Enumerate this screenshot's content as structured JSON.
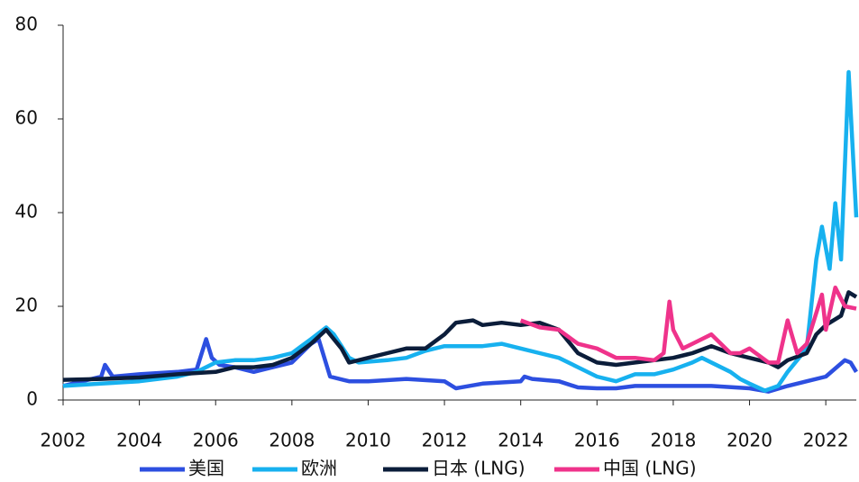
{
  "chart_data": {
    "type": "line",
    "xlim": [
      2002,
      2022.8
    ],
    "xticks": [
      2002,
      2004,
      2006,
      2008,
      2010,
      2012,
      2014,
      2016,
      2018,
      2020,
      2022
    ],
    "ylim": [
      0,
      80
    ],
    "yticks": [
      0,
      20,
      40,
      60,
      80
    ],
    "grid": false,
    "legend": "bottom",
    "series": [
      {
        "name": "美国",
        "color": "#2d4fe0",
        "x": [
          2002,
          2002.5,
          2003,
          2003.1,
          2003.3,
          2004,
          2005,
          2005.5,
          2005.75,
          2005.9,
          2006.1,
          2006.5,
          2007,
          2007.5,
          2008,
          2008.5,
          2008.7,
          2009,
          2009.5,
          2010,
          2011,
          2012,
          2012.3,
          2013,
          2014,
          2014.1,
          2014.3,
          2015,
          2015.5,
          2016,
          2016.5,
          2017,
          2018,
          2019,
          2020,
          2020.5,
          2021,
          2021.5,
          2022,
          2022.5,
          2022.65,
          2022.8
        ],
        "values": [
          3,
          4,
          5,
          7.5,
          5,
          5.5,
          6,
          6.5,
          13,
          9,
          7.5,
          7,
          6,
          7,
          8,
          12,
          13,
          5,
          4,
          4,
          4.5,
          4,
          2.5,
          3.5,
          4,
          5,
          4.5,
          4,
          2.7,
          2.5,
          2.5,
          3,
          3,
          3,
          2.5,
          1.8,
          3,
          4,
          5,
          8.5,
          8,
          6
        ]
      },
      {
        "name": "欧洲",
        "color": "#17b1ef",
        "x": [
          2002,
          2003,
          2004,
          2005,
          2005.5,
          2006,
          2006.5,
          2007,
          2007.5,
          2008,
          2008.5,
          2008.9,
          2009.1,
          2009.5,
          2009.75,
          2010.5,
          2011,
          2011.5,
          2012,
          2013,
          2013.5,
          2014,
          2014.5,
          2015,
          2015.5,
          2016,
          2016.5,
          2017,
          2017.5,
          2018,
          2018.5,
          2018.75,
          2019.5,
          2019.75,
          2020,
          2020.4,
          2020.75,
          2021,
          2021.5,
          2021.75,
          2021.9,
          2022.1,
          2022.25,
          2022.4,
          2022.6,
          2022.8
        ],
        "values": [
          3,
          3.5,
          4,
          5,
          6,
          8,
          8.5,
          8.5,
          9,
          10,
          13,
          15.5,
          14,
          9,
          8,
          8.5,
          9,
          10.5,
          11.5,
          11.5,
          12,
          11,
          10,
          9,
          7,
          5,
          4,
          5.5,
          5.5,
          6.5,
          8,
          9,
          6,
          4.5,
          3.5,
          2,
          3,
          6,
          11,
          30,
          37,
          28,
          42,
          30,
          70,
          39
        ]
      },
      {
        "name": "日本 (LNG)",
        "color": "#0b1d3a",
        "x": [
          2002,
          2003,
          2004,
          2005,
          2006,
          2006.5,
          2007,
          2007.5,
          2008,
          2008.5,
          2008.9,
          2009.3,
          2009.5,
          2010,
          2010.5,
          2011,
          2011.5,
          2012,
          2012.3,
          2012.75,
          2013,
          2013.5,
          2014,
          2014.5,
          2015,
          2015.5,
          2016,
          2016.5,
          2017,
          2017.5,
          2018,
          2018.5,
          2019,
          2019.5,
          2020,
          2020.5,
          2020.75,
          2021,
          2021.5,
          2021.75,
          2022,
          2022.4,
          2022.6,
          2022.8
        ],
        "values": [
          4.3,
          4.5,
          4.8,
          5.5,
          6,
          7,
          7,
          7.5,
          9,
          12,
          15,
          11,
          8,
          9,
          10,
          11,
          11,
          14,
          16.5,
          17,
          16,
          16.5,
          16,
          16.5,
          15,
          10,
          8,
          7.5,
          8,
          8.5,
          9,
          10,
          11.5,
          10,
          9,
          8,
          7,
          8.5,
          10,
          14,
          16,
          18,
          23,
          22
        ]
      },
      {
        "name": "中国 (LNG)",
        "color": "#ef338b",
        "x": [
          2014,
          2014.5,
          2015,
          2015.5,
          2016,
          2016.5,
          2017,
          2017.5,
          2017.75,
          2017.9,
          2018,
          2018.25,
          2018.5,
          2018.75,
          2019,
          2019.5,
          2019.75,
          2020,
          2020.5,
          2020.75,
          2021,
          2021.25,
          2021.5,
          2021.9,
          2022,
          2022.25,
          2022.5,
          2022.8
        ],
        "values": [
          17,
          15.5,
          15,
          12,
          11,
          9,
          9,
          8.5,
          10,
          21,
          15,
          11,
          12,
          13,
          14,
          10,
          10,
          11,
          8,
          8,
          17,
          10,
          12,
          22.5,
          15,
          24,
          20,
          19.5
        ]
      }
    ]
  }
}
